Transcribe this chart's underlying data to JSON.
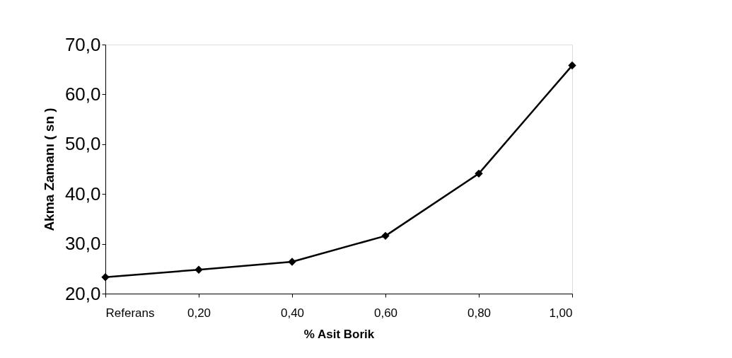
{
  "chart_data": {
    "type": "line",
    "xlabel": "% Asit Borik",
    "ylabel": "Akma Zamanı ( sn )",
    "categories": [
      "Referans",
      "0,20",
      "0,40",
      "0,60",
      "0,80",
      "1,00"
    ],
    "series": [
      {
        "color": "#000000",
        "values": [
          23.3,
          24.8,
          26.4,
          31.6,
          44.1,
          65.8
        ]
      }
    ],
    "ylim": [
      20,
      70
    ],
    "yticks": [
      {
        "value": 20,
        "label": "20,0"
      },
      {
        "value": 30,
        "label": "30,0"
      },
      {
        "value": 40,
        "label": "40,0"
      },
      {
        "value": 50,
        "label": "50,0"
      },
      {
        "value": 60,
        "label": "60,0"
      },
      {
        "value": 70,
        "label": "70,0"
      }
    ],
    "grid": false,
    "legend": false,
    "marker": "diamond",
    "line_style": "solid"
  }
}
